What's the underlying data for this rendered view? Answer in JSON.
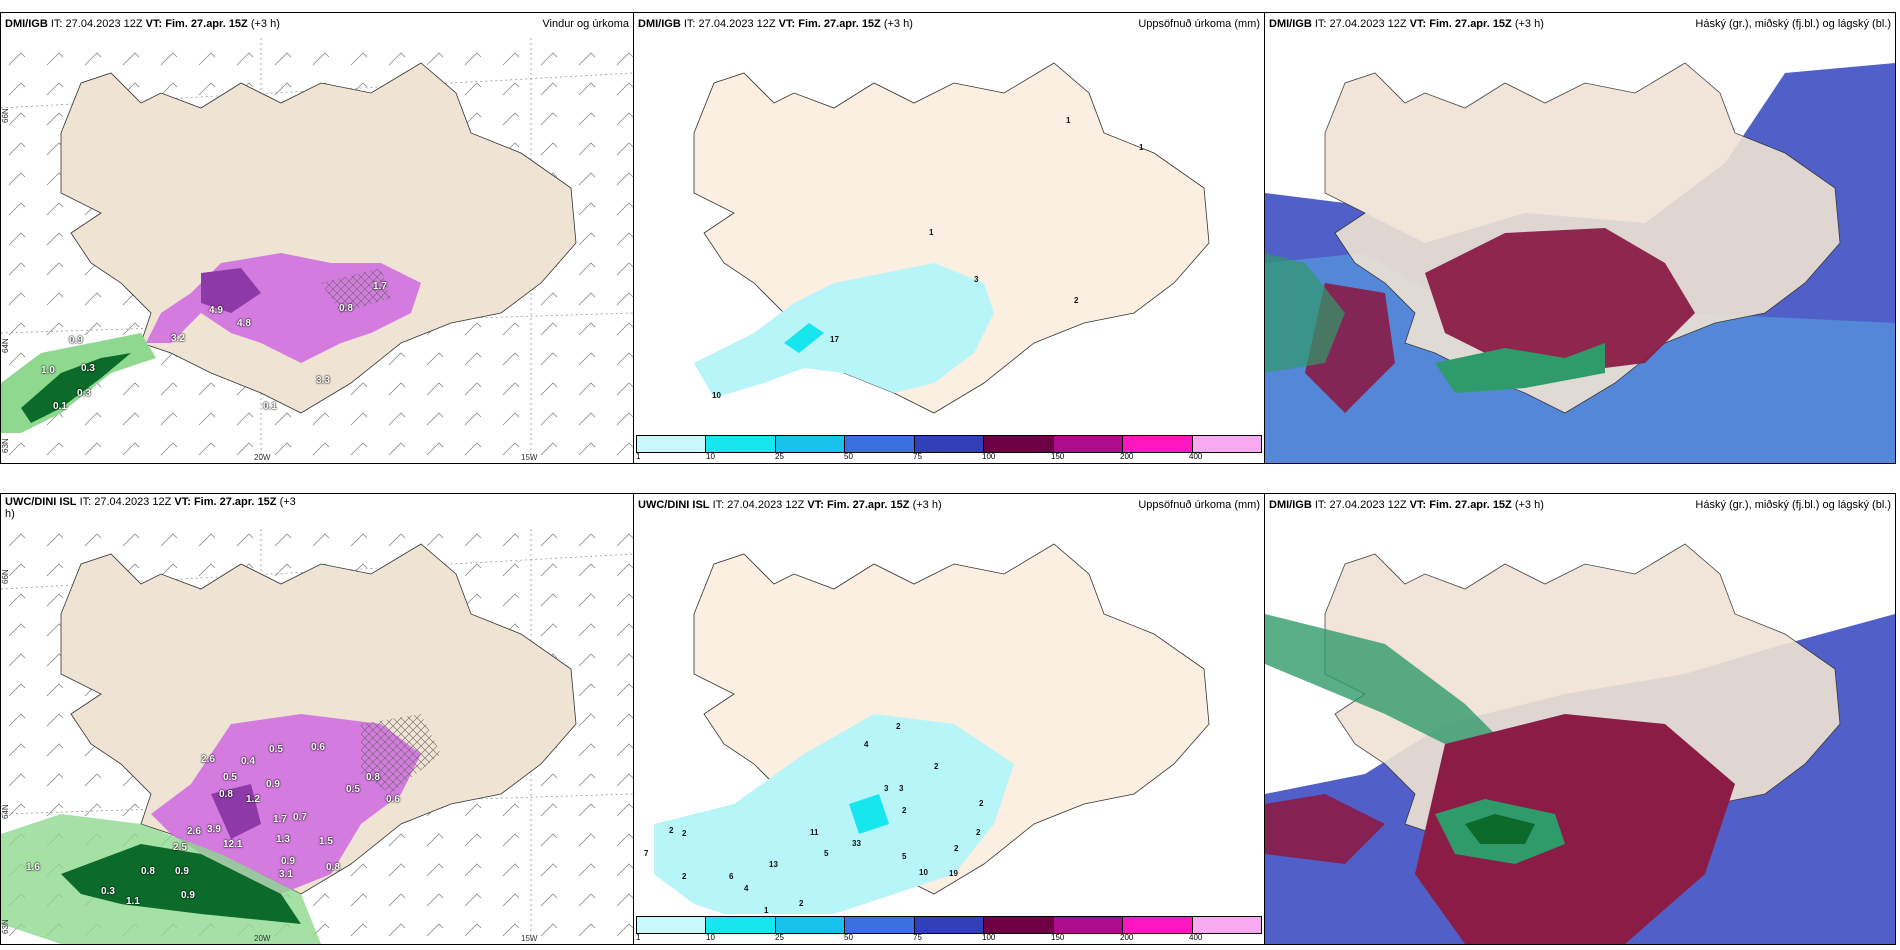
{
  "panels": [
    {
      "id": "p1",
      "type": "wind",
      "header": {
        "model": "DMI/IGB",
        "it_prefix": "IT:",
        "it": "27.04.2023 12Z",
        "vt_prefix": "VT:",
        "vt": "Fim. 27.apr. 15Z",
        "lead": "(+3 h)",
        "right": "Vindur og úrkoma"
      },
      "lon_ticks": [
        "20W",
        "15W"
      ],
      "lat_ticks": [
        "66N",
        "64N",
        "63N"
      ],
      "values": [
        "0.9",
        "1.0",
        "0.3",
        "0.3",
        "0.1",
        "3.2",
        "4.9",
        "4.8",
        "0.8",
        "1.7",
        "0.1",
        "3.3"
      ]
    },
    {
      "id": "p2",
      "type": "precip",
      "header": {
        "model": "DMI/IGB",
        "it_prefix": "IT:",
        "it": "27.04.2023 12Z",
        "vt_prefix": "VT:",
        "vt": "Fim. 27.apr. 15Z",
        "lead": "(+3 h)",
        "right": "Uppsöfnuð úrkoma (mm)"
      },
      "values": [
        "1",
        "1",
        "1",
        "3",
        "2",
        "17",
        "10"
      ],
      "colorbar": {
        "labels": [
          "1",
          "10",
          "25",
          "50",
          "75",
          "100",
          "150",
          "200",
          "400"
        ]
      }
    },
    {
      "id": "p3",
      "type": "clouds",
      "header": {
        "model": "DMI/IGB",
        "it_prefix": "IT:",
        "it": "27.04.2023 12Z",
        "vt_prefix": "VT:",
        "vt": "Fim. 27.apr. 15Z",
        "lead": "(+3 h)",
        "right": "Háský (gr.), miðský (fj.bl.) og lágský (bl.)"
      }
    },
    {
      "id": "p4",
      "type": "wind",
      "header": {
        "model": "UWC/DINI ISL",
        "it_prefix": "IT:",
        "it": "27.04.2023 12Z",
        "vt_prefix": "VT:",
        "vt": "Fim. 27.apr. 15Z",
        "lead": "(+3",
        "right": "h)"
      },
      "lon_ticks": [
        "20W",
        "15W"
      ],
      "lat_ticks": [
        "66N",
        "64N",
        "63N"
      ],
      "values": [
        "2.6",
        "0.5",
        "0.4",
        "0.5",
        "0.6",
        "0.8",
        "1.2",
        "0.9",
        "1.7",
        "0.5",
        "0.8",
        "0.6",
        "2.6",
        "3.9",
        "2.5",
        "12.1",
        "0.7",
        "1.3",
        "0.9",
        "1.5",
        "0.9",
        "1.6",
        "0.8",
        "3.1",
        "1.1",
        "0.9",
        "0.3",
        "0.8"
      ]
    },
    {
      "id": "p5",
      "type": "precip",
      "header": {
        "model": "UWC/DINI ISL",
        "it_prefix": "IT:",
        "it": "27.04.2023 12Z",
        "vt_prefix": "VT:",
        "vt": "Fim. 27.apr. 15Z",
        "lead": "(+3 h)",
        "right": "Uppsöfnuð úrkoma (mm)"
      },
      "values": [
        "2",
        "2",
        "2",
        "4",
        "3",
        "3",
        "2",
        "2",
        "2",
        "11",
        "33",
        "5",
        "5",
        "10",
        "13",
        "6",
        "4",
        "7",
        "2",
        "2",
        "2",
        "1",
        "19",
        "2"
      ],
      "colorbar": {
        "labels": [
          "1",
          "10",
          "25",
          "50",
          "75",
          "100",
          "150",
          "200",
          "400"
        ]
      }
    },
    {
      "id": "p6",
      "type": "clouds",
      "header": {
        "model": "DMI/IGB",
        "it_prefix": "IT:",
        "it": "27.04.2023 12Z",
        "vt_prefix": "VT:",
        "vt": "Fim. 27.apr. 15Z",
        "lead": "(+3 h)",
        "right": "Háský (gr.), miðský (fj.bl.) og lágský (bl.)"
      }
    }
  ],
  "colors": {
    "land": "#efe3d4",
    "land_light": "#fbefe2",
    "sea": "#ffffff",
    "precip_cyan": "#b7f5f8",
    "precip_cyan_dark": "#17e6ef",
    "pink": "#cf6fe0",
    "pink_dark": "#8d3aa8",
    "green_dark": "#0c6b2a",
    "green_light": "#8fd88f",
    "cloud_blue": "#5060c8",
    "cloud_light": "#5aaeea",
    "cloud_maroon": "#8a1c46",
    "cloud_green": "#2f9a6a",
    "colorbar": [
      "#c9f8fa",
      "#17e6ef",
      "#19c2ea",
      "#3a6fe0",
      "#3140b8",
      "#6e0046",
      "#ad0d8d",
      "#ff16c1",
      "#f7aaf0"
    ]
  }
}
